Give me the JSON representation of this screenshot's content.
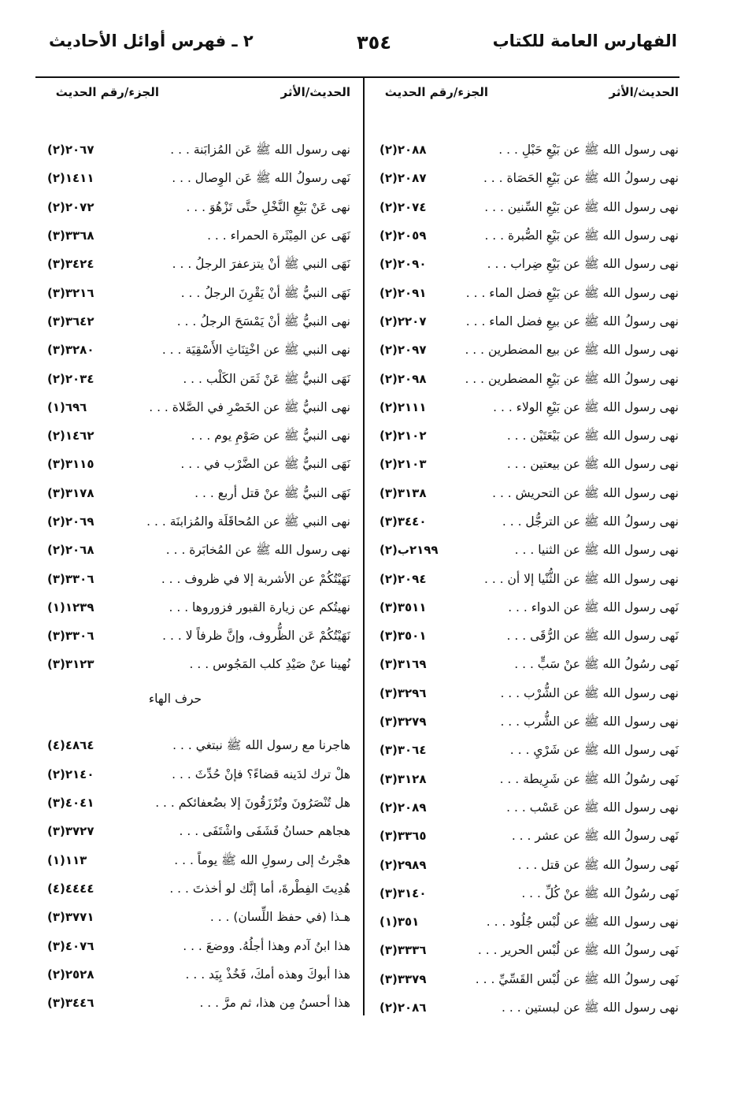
{
  "header": {
    "right": "الفهارس العامة للكتاب",
    "page_number": "٣٥٤",
    "left": "٢ ـ فهرس أوائل الأحاديث"
  },
  "column_headers": {
    "hadith": "الحديث/الأثر",
    "ref": "الجزء/رقم الحديث"
  },
  "right_column": [
    {
      "text": "نهى رسول الله ﷺ عن بَيْعِ حَبْلِ . . .",
      "ref": "٢٠٨٨(٢)"
    },
    {
      "text": "نهى رسولُ الله ﷺ عن بَيْعِ الحَصَاة . . .",
      "ref": "٢٠٨٧(٢)"
    },
    {
      "text": "نهى رسول الله ﷺ عن بَيْعِ السِّنين . . .",
      "ref": "٢٠٧٤(٢)"
    },
    {
      "text": "نهى رسول الله ﷺ عن بَيْعِ الصُّبرة . . .",
      "ref": "٢٠٥٩(٢)"
    },
    {
      "text": "نهى رسول الله ﷺ عن بَيْعِ ضِراب . . .",
      "ref": "٢٠٩٠(٢)"
    },
    {
      "text": "نهى رسول الله ﷺ عن بَيْعِ فضل الماء . . .",
      "ref": "٢٠٩١(٢)"
    },
    {
      "text": "نهى رسولُ الله ﷺ عن بيعِ فضل الماء . . .",
      "ref": "٢٢٠٧(٢)"
    },
    {
      "text": "نهى رسول الله ﷺ عن بيع المضطرين . . .",
      "ref": "٢٠٩٧(٢)"
    },
    {
      "text": "نهى رسولُ الله ﷺ عن بَيْعِ المضطرين . . .",
      "ref": "٢٠٩٨(٢)"
    },
    {
      "text": "نهى رسول الله ﷺ عن بَيْعِ الولاء . . .",
      "ref": "٢١١١(٢)"
    },
    {
      "text": "نهى رسول الله ﷺ عن بَيْعَتَيْن . . .",
      "ref": "٢١٠٢(٢)"
    },
    {
      "text": "نهى رسول الله ﷺ عن بيعتين . . .",
      "ref": "٢١٠٣(٢)"
    },
    {
      "text": "نهى رسول الله ﷺ عن التحريش . . .",
      "ref": "٣١٣٨(٣)"
    },
    {
      "text": "نهى رسولُ الله ﷺ عن الترجُّل . . .",
      "ref": "٣٤٤٠(٣)"
    },
    {
      "text": "نهى رسول الله ﷺ عن الثنيا . . .",
      "ref": "٢١٩٩ب(٢)"
    },
    {
      "text": "نهى رسول الله ﷺ عن الثُّنْيا إلا أن . . .",
      "ref": "٢٠٩٤(٢)"
    },
    {
      "text": "نَهى رسول الله ﷺ عن الدواء . . .",
      "ref": "٣٥١١(٣)"
    },
    {
      "text": "نَهى رسول الله ﷺ عن الرُّقَى . . .",
      "ref": "٣٥٠١(٣)"
    },
    {
      "text": "نَهى رسُولُ الله ﷺ عنْ سَبٍّ . . .",
      "ref": "٣١٦٩(٣)"
    },
    {
      "text": "نهى رسول الله ﷺ عن الشُّرْب . . .",
      "ref": "٣٢٩٦(٣)"
    },
    {
      "text": "نهى رسول الله ﷺ عن الشُّرب . . .",
      "ref": "٣٢٧٩(٣)"
    },
    {
      "text": "نَهى رسول الله ﷺ عن شَرْيِ . . .",
      "ref": "٣٠٦٤(٣)"
    },
    {
      "text": "نَهى رسُولُ الله ﷺ عن شَرِيطة . . .",
      "ref": "٣١٢٨(٣)"
    },
    {
      "text": "نهى رسول الله ﷺ عن عَسْب . . .",
      "ref": "٢٠٨٩(٢)"
    },
    {
      "text": "نَهى رسولُ الله ﷺ عن عشر . . .",
      "ref": "٣٣٦٥(٣)"
    },
    {
      "text": "نَهى رسولُ الله ﷺ عن قتل . . .",
      "ref": "٢٩٨٩(٢)"
    },
    {
      "text": "نَهى رسُولُ الله ﷺ عنْ كُلِّ . . .",
      "ref": "٣١٤٠(٣)"
    },
    {
      "text": "نهى رسول الله ﷺ عن لُبْس جُلُود . . .",
      "ref": "٣٥١(١)"
    },
    {
      "text": "نَهى رسولُ الله ﷺ عن لُبْس الحرير . . .",
      "ref": "٣٣٣٦(٣)"
    },
    {
      "text": "نَهى رسولُ الله ﷺ عن لُبْس القَسِّيِّ . . .",
      "ref": "٣٣٧٩(٣)"
    },
    {
      "text": "نهى رسول الله ﷺ عن لبستين . . .",
      "ref": "٢٠٨٦(٢)"
    }
  ],
  "left_column": [
    {
      "text": "نهى رسول الله ﷺ عَن المُزابَنة . . .",
      "ref": "٢٠٦٧(٢)"
    },
    {
      "text": "نَهى رسولُ الله ﷺ عَن الوِصال . . .",
      "ref": "١٤١١(٢)"
    },
    {
      "text": "نهى عَنْ بَيْعِ النَّخْلِ حتَّى تَزْهُوَ . . .",
      "ref": "٢٠٧٢(٢)"
    },
    {
      "text": "نَهَى عن المِيْثَرة الحمراء . . .",
      "ref": "٣٣٦٨(٣)"
    },
    {
      "text": "نَهَى النبي ﷺ أنْ يتزعفرَ الرجلُ . . .",
      "ref": "٣٤٢٤(٣)"
    },
    {
      "text": "نَهَى النبيُّ ﷺ أنْ يَقْرِنَ الرجلُ . . .",
      "ref": "٣٢١٦(٣)"
    },
    {
      "text": "نهى النبيُّ ﷺ أنْ يَمْسَحَ الرجلُ . . .",
      "ref": "٣٦٤٢(٣)"
    },
    {
      "text": "نهى النبي ﷺ عن اخْتِنَاثِ الأَسْقِيَة . . .",
      "ref": "٣٢٨٠(٣)"
    },
    {
      "text": "نَهَى النبيُّ ﷺ عَنْ ثَمَن الكَلْب . . .",
      "ref": "٢٠٣٤(٢)"
    },
    {
      "text": "نهى النبيُّ ﷺ عن الخَصْرِ في الصَّلاة . . .",
      "ref": "٦٩٦(١)"
    },
    {
      "text": "نهى النبيُّ ﷺ عن صَوْمِ يوم . . .",
      "ref": "١٤٦٢(٢)"
    },
    {
      "text": "نَهَى النبيُّ ﷺ عن الضَّرْب في . . .",
      "ref": "٣١١٥(٣)"
    },
    {
      "text": "نَهَى النبيُّ ﷺ عنْ قتل أربع . . .",
      "ref": "٣١٧٨(٣)"
    },
    {
      "text": "نهى النبي ﷺ عن المُحاقَلَة والمُزابنَة . . .",
      "ref": "٢٠٦٩(٢)"
    },
    {
      "text": "نهى رسول الله ﷺ عن المُخابَرة . . .",
      "ref": "٢٠٦٨(٢)"
    },
    {
      "text": "نَهَيْتُكُمْ عن الأشربة إلا في ظروف . . .",
      "ref": "٣٣٠٦(٣)"
    },
    {
      "text": "نهيتُكم عن زيارة القبور فزوروها . . .",
      "ref": "١٢٣٩(١)"
    },
    {
      "text": "نَهَيْتُكُمْ عَن الظُّروف، وإنَّ ظرفاً لا . . .",
      "ref": "٣٣٠٦(٣)"
    },
    {
      "text": "نُهينا عنْ صَيْدِ كلب المَجُوس . . .",
      "ref": "٣١٢٣(٣)"
    },
    {
      "section": "حرف الهاء"
    },
    {
      "text": "هاجرنا مع رسول الله ﷺ نبتغي . . .",
      "ref": "٤٨٦٤(٤)"
    },
    {
      "text": "هلْ ترك لدَينه قضاءً؟ فإنْ حُدِّثَ . . .",
      "ref": "٢١٤٠(٢)"
    },
    {
      "text": "هل تُنْصَرُونَ وتُرْزَقُونَ إلا بضُعفائكم . . .",
      "ref": "٤٠٤١(٣)"
    },
    {
      "text": "هجاهم حسانُ فَشَفَى واشْتَفَى . . .",
      "ref": "٣٧٢٧(٣)"
    },
    {
      "text": "هجْرتُ إلى رسولِ الله ﷺ يوماً . . .",
      "ref": "١١٣(١)"
    },
    {
      "text": "هُدِيتَ الفِطْرةَ، أما إنَّك لو أخذتَ . . .",
      "ref": "٤٤٤٤(٤)"
    },
    {
      "text": "هـذا (في حفظ اللِّسان) . . .",
      "ref": "٣٧٧١(٣)"
    },
    {
      "text": "هذا ابنُ آدم وهذا أجلُهُ. ووضعَ . . .",
      "ref": "٤٠٧٦(٣)"
    },
    {
      "text": "هذا أبوكَ وهذه أمكَ، فَخُذْ بِيَد . . .",
      "ref": "٢٥٢٨(٢)"
    },
    {
      "text": "هذا أحسنُ مِن هذا، ثم مرَّ . . .",
      "ref": "٣٤٤٦(٣)"
    }
  ]
}
